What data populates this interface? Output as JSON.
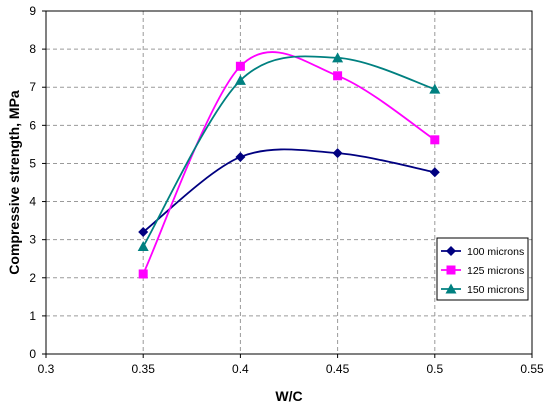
{
  "chart_data": {
    "type": "line",
    "title": "",
    "xlabel": "W/C",
    "ylabel": "Compressive strength, MPa",
    "xlim": [
      0.3,
      0.55
    ],
    "ylim": [
      0,
      9
    ],
    "xticks": [
      "0.3",
      "0.35",
      "0.4",
      "0.45",
      "0.5",
      "0.55"
    ],
    "yticks": [
      "0",
      "1",
      "2",
      "3",
      "4",
      "5",
      "6",
      "7",
      "8",
      "9"
    ],
    "grid": "dashed gridlines at each major tick",
    "legend_position": "bottom-right",
    "x": [
      0.35,
      0.4,
      0.45,
      0.5
    ],
    "series": [
      {
        "name": "100 microns",
        "values": [
          3.2,
          5.17,
          5.27,
          4.77
        ],
        "color": "#000080",
        "marker": "diamond"
      },
      {
        "name": "125 microns",
        "values": [
          2.1,
          7.55,
          7.3,
          5.62
        ],
        "color": "#FF00FF",
        "marker": "square"
      },
      {
        "name": "150 microns",
        "values": [
          2.82,
          7.18,
          7.77,
          6.95
        ],
        "color": "#008080",
        "marker": "triangle"
      }
    ]
  }
}
